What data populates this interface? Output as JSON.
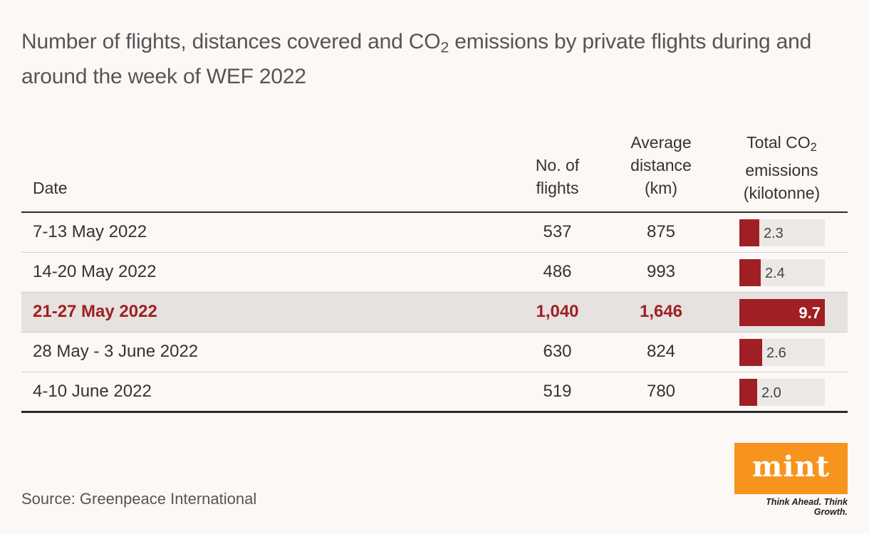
{
  "title": {
    "part1": "Number of flights, distances covered and CO",
    "sub": "2",
    "part2": " emissions by private flights during and around the week of WEF 2022"
  },
  "headers": {
    "date": "Date",
    "flights_l1": "No. of",
    "flights_l2": "flights",
    "distance_l1": "Average",
    "distance_l2": "distance",
    "distance_l3": "(km)",
    "co2_l1a": "Total CO",
    "co2_l1sub": "2",
    "co2_l2": "emissions",
    "co2_l3": "(kilotonne)"
  },
  "chart_data": {
    "type": "table",
    "columns": [
      "Date",
      "No. of flights",
      "Average distance (km)",
      "Total CO2 emissions (kilotonne)"
    ],
    "rows": [
      {
        "date": "7-13 May 2022",
        "flights": "537",
        "distance": "875",
        "co2_label": "2.3",
        "co2": 2.3,
        "highlight": false
      },
      {
        "date": "14-20 May 2022",
        "flights": "486",
        "distance": "993",
        "co2_label": "2.4",
        "co2": 2.4,
        "highlight": false
      },
      {
        "date": "21-27 May 2022",
        "flights": "1,040",
        "distance": "1,646",
        "co2_label": "9.7",
        "co2": 9.7,
        "highlight": true
      },
      {
        "date": "28 May - 3 June 2022",
        "flights": "630",
        "distance": "824",
        "co2_label": "2.6",
        "co2": 2.6,
        "highlight": false
      },
      {
        "date": "4-10 June 2022",
        "flights": "519",
        "distance": "780",
        "co2_label": "2.0",
        "co2": 2.0,
        "highlight": false
      }
    ],
    "co2_max": 9.7,
    "accent_color": "#a01f24"
  },
  "source": "Source: Greenpeace International",
  "logo": {
    "name": "mint",
    "tagline": "Think Ahead. Think Growth.",
    "color": "#f7941d"
  }
}
